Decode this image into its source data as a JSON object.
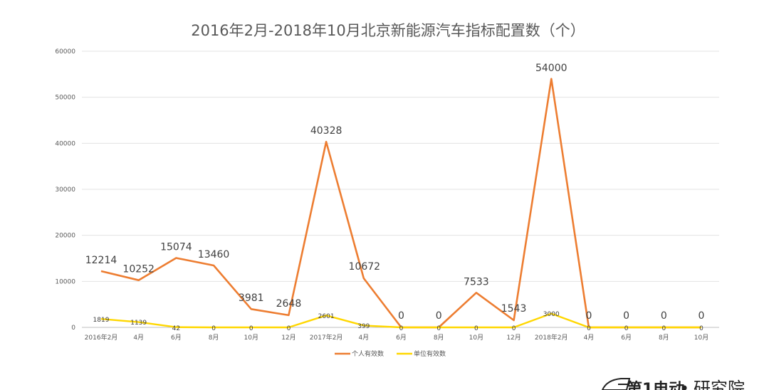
{
  "chart_data": {
    "type": "line",
    "title": "2016年2月-2018年10月北京新能源汽车指标配置数（个）",
    "categories": [
      "2016年2月",
      "4月",
      "6月",
      "8月",
      "10月",
      "12月",
      "2017年2月",
      "4月",
      "6月",
      "8月",
      "10月",
      "12月",
      "2018年2月",
      "4月",
      "6月",
      "8月",
      "10月"
    ],
    "y_ticks": [
      "0",
      "10000",
      "20000",
      "30000",
      "40000",
      "50000",
      "60000"
    ],
    "ylim": [
      0,
      60000
    ],
    "grid": true,
    "legend_position": "bottom",
    "series": [
      {
        "name": "个人有效数",
        "color": "#ED7D31",
        "values": [
          12214,
          10252,
          15074,
          13460,
          3981,
          2648,
          40328,
          10672,
          0,
          0,
          7533,
          1543,
          54000,
          0,
          0,
          0,
          0
        ],
        "labels": [
          "12214",
          "10252",
          "15074",
          "13460",
          "3981",
          "2648",
          "40328",
          "10672",
          "0",
          "0",
          "7533",
          "1543",
          "54000",
          "0",
          "0",
          "0",
          "0"
        ]
      },
      {
        "name": "单位有效数",
        "color": "#FFD700",
        "values": [
          1819,
          1139,
          42,
          0,
          0,
          0,
          2601,
          399,
          0,
          0,
          0,
          0,
          3000,
          0,
          0,
          0,
          0
        ],
        "labels": [
          "1819",
          "1139",
          "42",
          "0",
          "0",
          "0",
          "2601",
          "399",
          "0",
          "0",
          "0",
          "0",
          "3000",
          "0",
          "0",
          "0",
          "0"
        ]
      }
    ]
  },
  "brand": {
    "left": "第1电动",
    "dot": "•",
    "right": "研究院"
  }
}
